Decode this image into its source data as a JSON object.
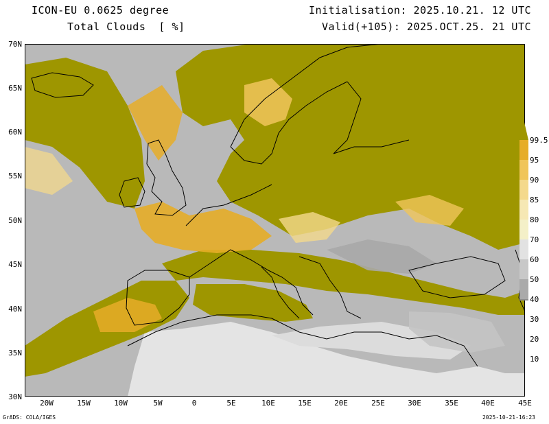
{
  "header": {
    "model": "ICON-EU 0.0625 degree",
    "field": "Total Clouds  [ %]",
    "init": "Initialisation: 2025.10.21. 12 UTC",
    "valid": "Valid(+105): 2025.OCT.25. 21 UTC"
  },
  "axes": {
    "lat_labels": [
      "70N",
      "65N",
      "60N",
      "55N",
      "50N",
      "45N",
      "40N",
      "35N",
      "30N"
    ],
    "lon_labels": [
      "20W",
      "15W",
      "10W",
      "5W",
      "0",
      "5E",
      "10E",
      "15E",
      "20E",
      "25E",
      "30E",
      "35E",
      "40E",
      "45E"
    ]
  },
  "legend": {
    "levels": [
      "99.5",
      "95",
      "90",
      "85",
      "80",
      "70",
      "60",
      "50",
      "40",
      "30",
      "20",
      "10"
    ],
    "colors": [
      "#9e9600",
      "#e6ad28",
      "#f0c55a",
      "#f4d98c",
      "#f6e8b4",
      "#f4f0c8",
      "#e2e2e2",
      "#c8c8c8",
      "#aaaaaa",
      "#8c8c8c",
      "#6e6e6e",
      "#555555"
    ]
  },
  "footer": {
    "left": "GrADS: COLA/IGES",
    "right": "2025-10-21-16:23"
  },
  "colors": {
    "cloud_dense": "#9e9600",
    "cloud_high": "#e6ad28",
    "cloud_mid": "#f4d98c",
    "cloud_thin": "#b4b4b4",
    "clear": "#e6e6e6",
    "coast": "#000000"
  }
}
